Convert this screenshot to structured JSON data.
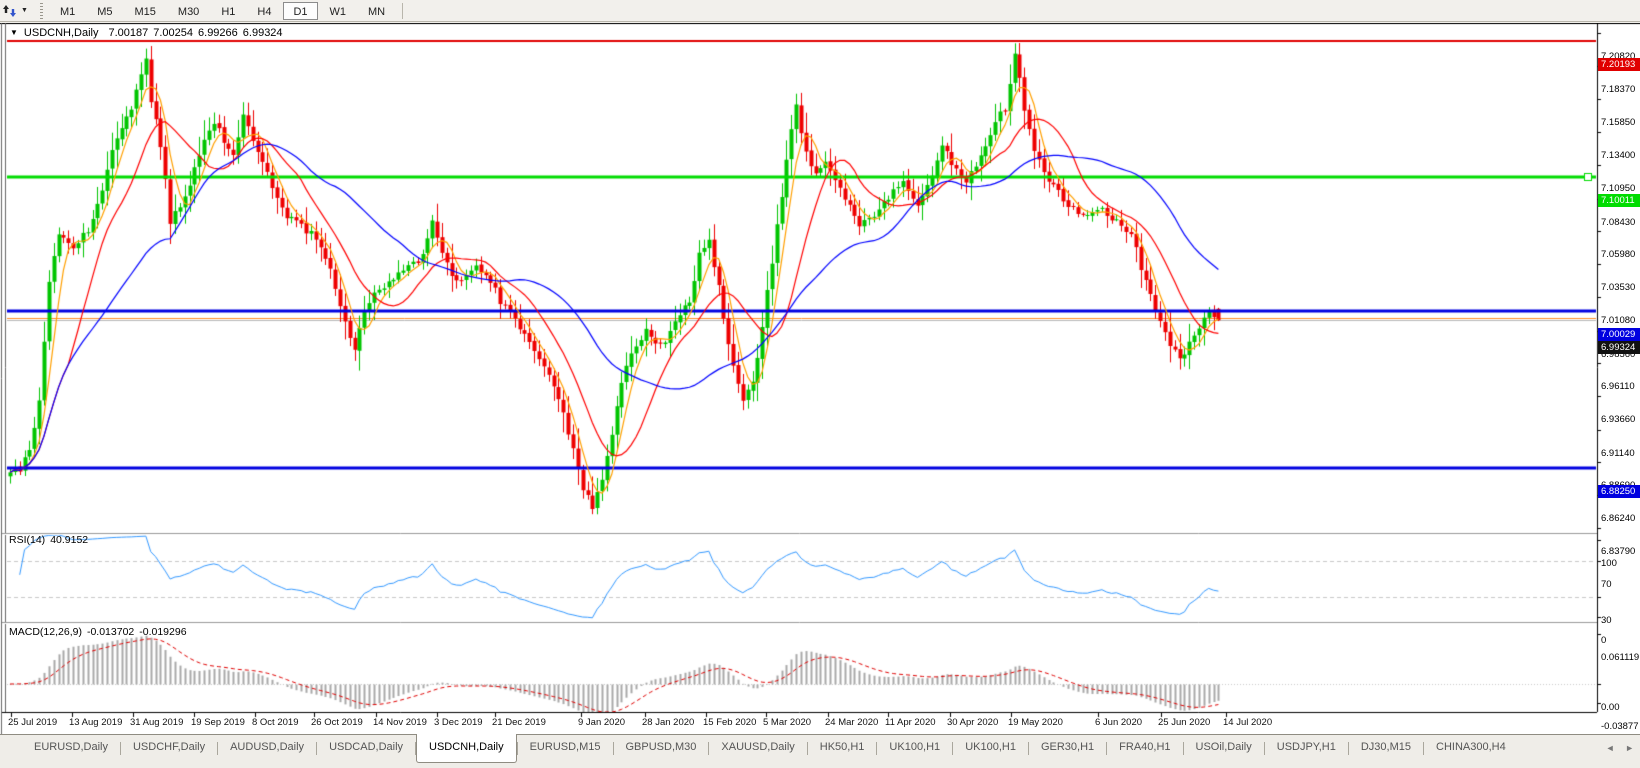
{
  "toolbar": {
    "timeframes": [
      {
        "label": "M1",
        "active": false
      },
      {
        "label": "M5",
        "active": false
      },
      {
        "label": "M15",
        "active": false
      },
      {
        "label": "M30",
        "active": false
      },
      {
        "label": "H1",
        "active": false
      },
      {
        "label": "H4",
        "active": false
      },
      {
        "label": "D1",
        "active": true
      },
      {
        "label": "W1",
        "active": false
      },
      {
        "label": "MN",
        "active": false
      }
    ]
  },
  "icons": {
    "chart_menu": "▼",
    "toolbar_caret": "▼",
    "scroll_left": "◄",
    "scroll_right": "►"
  },
  "chart": {
    "title_symbol": "USDCNH,Daily",
    "title_ohlc": [
      "7.00187",
      "7.00254",
      "6.99266",
      "6.99324"
    ]
  },
  "chart_data": {
    "type": "candlestick",
    "symbol": "USDCNH",
    "timeframe": "Daily",
    "price_range_visible": [
      6.8379,
      7.2082
    ],
    "price_axis_ticks": [
      "7.20820",
      "7.18370",
      "7.15850",
      "7.13400",
      "7.10950",
      "7.08430",
      "7.05980",
      "7.03530",
      "7.01080",
      "6.98560",
      "6.96110",
      "6.93660",
      "6.91140",
      "6.88690",
      "6.86240",
      "6.83790"
    ],
    "price_lines": [
      {
        "value": 7.20193,
        "label": "7.20193",
        "color": "#e00000",
        "width": 2,
        "tag": true
      },
      {
        "value": 7.10011,
        "label": "7.10011",
        "color": "#00dc00",
        "width": 3,
        "tag": true,
        "handle": true
      },
      {
        "value": 7.00029,
        "label": "7.00029",
        "color": "#0000e0",
        "width": 3,
        "tag": true
      },
      {
        "value": 6.9953,
        "label": "",
        "color": "#ff8c28",
        "width": 1,
        "tag": false
      },
      {
        "value": 6.99324,
        "label": "6.99324",
        "color": "#b8b8b8",
        "width": 1,
        "tag": true,
        "tag_bg": "#111111"
      },
      {
        "value": 6.8825,
        "label": "6.88250",
        "color": "#0000e0",
        "width": 3,
        "tag": true
      }
    ],
    "candles": {
      "count": 250,
      "up_color": "#00c500",
      "down_color": "#ee0000",
      "close_keypoints": [
        [
          0,
          6.878
        ],
        [
          2,
          6.883
        ],
        [
          4,
          6.898
        ],
        [
          6,
          6.932
        ],
        [
          8,
          7.022
        ],
        [
          10,
          7.056
        ],
        [
          13,
          7.046
        ],
        [
          16,
          7.062
        ],
        [
          19,
          7.092
        ],
        [
          22,
          7.131
        ],
        [
          25,
          7.152
        ],
        [
          28,
          7.188
        ],
        [
          29,
          7.158
        ],
        [
          31,
          7.124
        ],
        [
          33,
          7.068
        ],
        [
          35,
          7.078
        ],
        [
          37,
          7.095
        ],
        [
          39,
          7.118
        ],
        [
          42,
          7.142
        ],
        [
          44,
          7.128
        ],
        [
          46,
          7.118
        ],
        [
          48,
          7.146
        ],
        [
          51,
          7.118
        ],
        [
          54,
          7.094
        ],
        [
          57,
          7.072
        ],
        [
          60,
          7.064
        ],
        [
          63,
          7.054
        ],
        [
          66,
          7.032
        ],
        [
          68,
          7.005
        ],
        [
          70,
          6.982
        ],
        [
          71,
          6.972
        ],
        [
          73,
          7.002
        ],
        [
          76,
          7.016
        ],
        [
          79,
          7.026
        ],
        [
          82,
          7.032
        ],
        [
          85,
          7.042
        ],
        [
          87,
          7.066
        ],
        [
          89,
          7.042
        ],
        [
          91,
          7.028
        ],
        [
          93,
          7.024
        ],
        [
          96,
          7.032
        ],
        [
          99,
          7.022
        ],
        [
          101,
          7.008
        ],
        [
          104,
          6.996
        ],
        [
          107,
          6.976
        ],
        [
          110,
          6.958
        ],
        [
          113,
          6.934
        ],
        [
          116,
          6.898
        ],
        [
          118,
          6.868
        ],
        [
          120,
          6.854
        ],
        [
          121,
          6.862
        ],
        [
          122,
          6.872
        ],
        [
          124,
          6.908
        ],
        [
          126,
          6.948
        ],
        [
          128,
          6.968
        ],
        [
          131,
          6.984
        ],
        [
          134,
          6.974
        ],
        [
          137,
          6.99
        ],
        [
          140,
          7.008
        ],
        [
          142,
          7.042
        ],
        [
          144,
          7.052
        ],
        [
          146,
          7.018
        ],
        [
          148,
          6.976
        ],
        [
          151,
          6.932
        ],
        [
          153,
          6.948
        ],
        [
          155,
          6.988
        ],
        [
          157,
          7.038
        ],
        [
          159,
          7.088
        ],
        [
          161,
          7.138
        ],
        [
          162,
          7.152
        ],
        [
          164,
          7.118
        ],
        [
          166,
          7.102
        ],
        [
          168,
          7.114
        ],
        [
          171,
          7.092
        ],
        [
          173,
          7.077
        ],
        [
          175,
          7.062
        ],
        [
          178,
          7.072
        ],
        [
          181,
          7.086
        ],
        [
          184,
          7.096
        ],
        [
          187,
          7.082
        ],
        [
          190,
          7.102
        ],
        [
          192,
          7.124
        ],
        [
          194,
          7.112
        ],
        [
          197,
          7.096
        ],
        [
          200,
          7.118
        ],
        [
          203,
          7.142
        ],
        [
          205,
          7.152
        ],
        [
          207,
          7.192
        ],
        [
          209,
          7.152
        ],
        [
          211,
          7.122
        ],
        [
          213,
          7.102
        ],
        [
          216,
          7.088
        ],
        [
          219,
          7.076
        ],
        [
          222,
          7.07
        ],
        [
          225,
          7.076
        ],
        [
          228,
          7.066
        ],
        [
          231,
          7.06
        ],
        [
          233,
          7.032
        ],
        [
          235,
          7.01
        ],
        [
          237,
          6.994
        ],
        [
          239,
          6.976
        ],
        [
          241,
          6.962
        ],
        [
          243,
          6.976
        ],
        [
          245,
          6.988
        ],
        [
          247,
          7.002
        ],
        [
          248,
          6.998
        ],
        [
          249,
          6.9932
        ]
      ],
      "overrides": [
        {
          "index": 28,
          "high": 7.1965
        },
        {
          "index": 120,
          "low": 6.8482
        },
        {
          "index": 207,
          "high": 7.2005
        },
        {
          "index": 249,
          "open": 7.00187,
          "high": 7.00254,
          "low": 6.99266,
          "close": 6.99324
        }
      ]
    },
    "moving_averages": [
      {
        "name": "fast-ma",
        "period": 5,
        "color": "#ffa000"
      },
      {
        "name": "medium-ma",
        "period": 13,
        "color": "#ff0000"
      },
      {
        "name": "slow-ma",
        "period": 34,
        "color": "#0000ff"
      }
    ],
    "x_axis_dates": [
      [
        "25 Jul 2019",
        8
      ],
      [
        "13 Aug 2019",
        69
      ],
      [
        "31 Aug 2019",
        130
      ],
      [
        "19 Sep 2019",
        191
      ],
      [
        "8 Oct 2019",
        252
      ],
      [
        "26 Oct 2019",
        311
      ],
      [
        "14 Nov 2019",
        373
      ],
      [
        "3 Dec 2019",
        434
      ],
      [
        "21 Dec 2019",
        492
      ],
      [
        "9 Jan 2020",
        578
      ],
      [
        "28 Jan 2020",
        642
      ],
      [
        "15 Feb 2020",
        703
      ],
      [
        "5 Mar 2020",
        763
      ],
      [
        "24 Mar 2020",
        825
      ],
      [
        "11 Apr 2020",
        885
      ],
      [
        "30 Apr 2020",
        947
      ],
      [
        "19 May 2020",
        1008
      ],
      [
        "6 Jun 2020",
        1095
      ],
      [
        "25 Jun 2020",
        1158
      ],
      [
        "14 Jul 2020",
        1223
      ]
    ],
    "rsi": {
      "label": "RSI(14)",
      "value": "40.9152",
      "color": "#3399ff",
      "axis_ticks": [
        100,
        70,
        30,
        0
      ],
      "levels": [
        70,
        30
      ],
      "period": 14
    },
    "macd": {
      "label": "MACD(12,26,9)",
      "value_main": "-0.013702",
      "value_signal": "-0.019296",
      "axis_ticks": [
        "0.061119",
        "0.00",
        "-0.03877"
      ],
      "hist_color": "#a8a8a8",
      "signal_color": "#e00000",
      "fast": 12,
      "slow": 26,
      "signal": 9
    }
  },
  "tabs": {
    "items": [
      {
        "label": "EURUSD,Daily",
        "active": false
      },
      {
        "label": "USDCHF,Daily",
        "active": false
      },
      {
        "label": "AUDUSD,Daily",
        "active": false
      },
      {
        "label": "USDCAD,Daily",
        "active": false
      },
      {
        "label": "USDCNH,Daily",
        "active": true
      },
      {
        "label": "EURUSD,M15",
        "active": false
      },
      {
        "label": "GBPUSD,M30",
        "active": false
      },
      {
        "label": "XAUUSD,Daily",
        "active": false
      },
      {
        "label": "HK50,H1",
        "active": false
      },
      {
        "label": "UK100,H1",
        "active": false
      },
      {
        "label": "UK100,H1",
        "active": false
      },
      {
        "label": "GER30,H1",
        "active": false
      },
      {
        "label": "FRA40,H1",
        "active": false
      },
      {
        "label": "USOil,Daily",
        "active": false
      },
      {
        "label": "USDJPY,H1",
        "active": false
      },
      {
        "label": "DJ30,M15",
        "active": false
      },
      {
        "label": "CHINA300,H4",
        "active": false
      }
    ]
  }
}
